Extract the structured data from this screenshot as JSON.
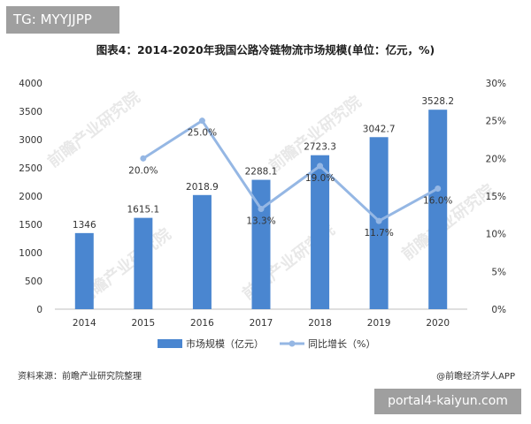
{
  "tag": {
    "text": "TG: MYYJJPP"
  },
  "portal": {
    "text": "portal4-kaiyun.com"
  },
  "source": "资料来源：前瞻产业研究院整理",
  "credit": "@前瞻经济学人APP",
  "colors": {
    "bar": "#4a86d0",
    "line": "#95b7e4"
  },
  "chart_data": {
    "type": "bar",
    "title": "图表4：2014-2020年我国公路冷链物流市场规模(单位：亿元，%)",
    "categories": [
      "2014",
      "2015",
      "2016",
      "2017",
      "2018",
      "2019",
      "2020"
    ],
    "series": [
      {
        "name": "市场规模（亿元）",
        "type": "bar",
        "axis": "left",
        "values": [
          1346,
          1615.1,
          2018.9,
          2288.1,
          2723.3,
          3042.7,
          3528.2
        ],
        "labels": [
          "1346",
          "1615.1",
          "2018.9",
          "2288.1",
          "2723.3",
          "3042.7",
          "3528.2"
        ]
      },
      {
        "name": "同比增长（%）",
        "type": "line",
        "axis": "right",
        "values": [
          null,
          20.0,
          25.0,
          13.3,
          19.0,
          11.7,
          16.0
        ],
        "labels": [
          "",
          "20.0%",
          "25.0%",
          "13.3%",
          "19.0%",
          "11.7%",
          "16.0%"
        ]
      }
    ],
    "y_left": {
      "lim": [
        0,
        4000
      ],
      "ticks": [
        "0",
        "500",
        "1000",
        "1500",
        "2000",
        "2500",
        "3000",
        "3500",
        "4000"
      ]
    },
    "y_right": {
      "lim": [
        0,
        30
      ],
      "ticks": [
        "0%",
        "5%",
        "10%",
        "15%",
        "20%",
        "25%",
        "30%"
      ]
    },
    "grid": false,
    "legend": "bottom"
  }
}
